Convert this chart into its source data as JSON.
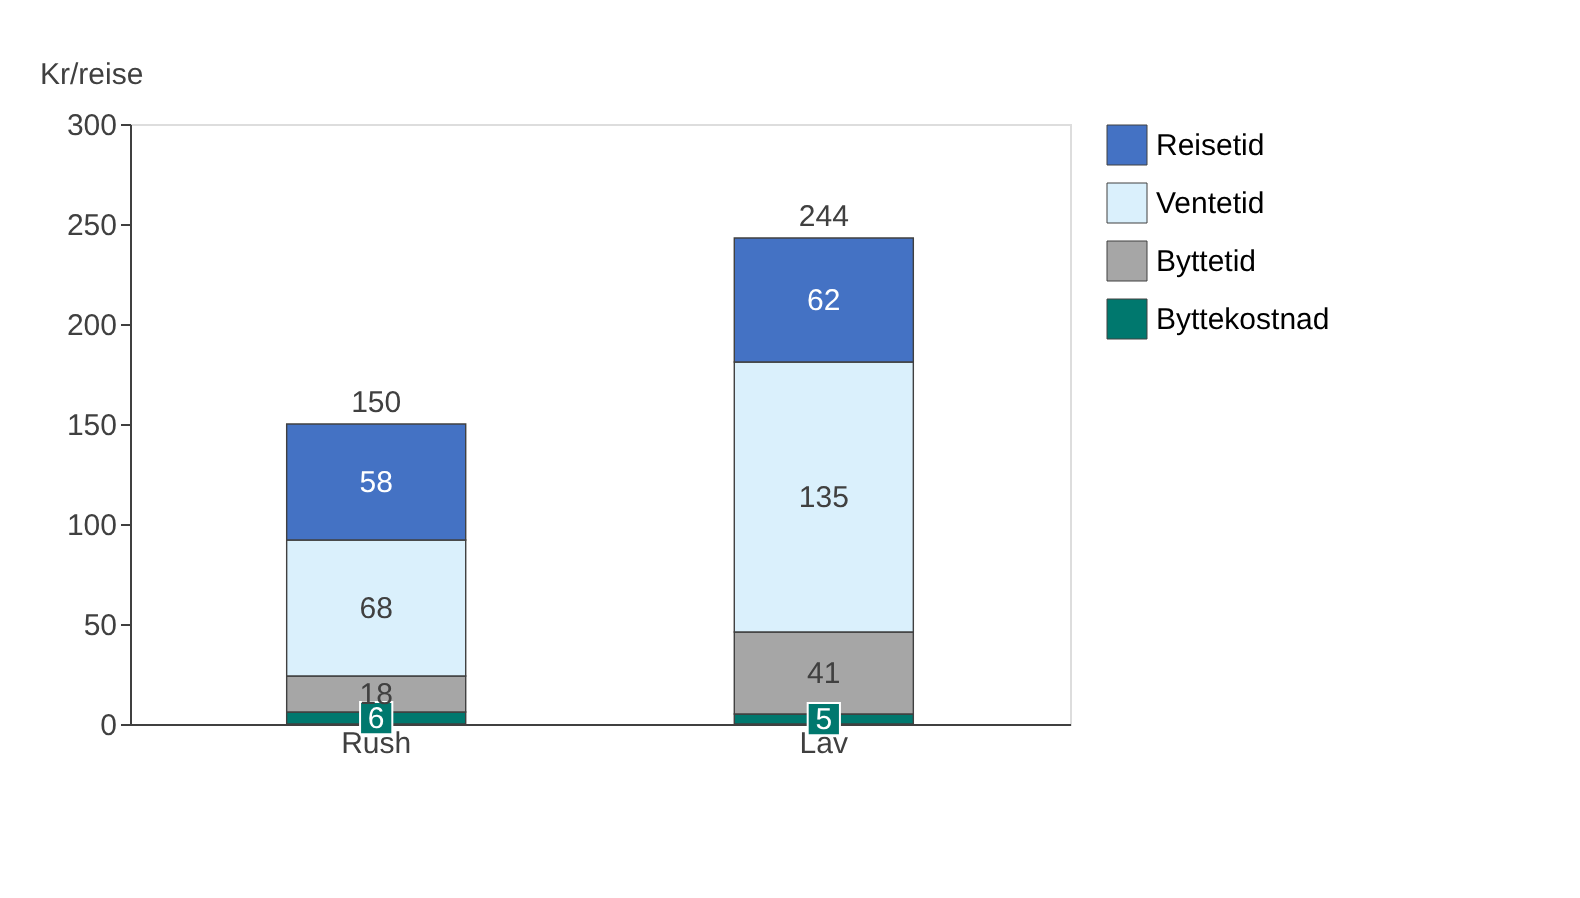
{
  "chart_data": {
    "type": "bar",
    "stacked": true,
    "ylabel": "Kr/reise",
    "categories": [
      "Rush",
      "Lav"
    ],
    "series": [
      {
        "name": "Byttekostnad",
        "color": "#00786e",
        "values": [
          6,
          5
        ]
      },
      {
        "name": "Byttetid",
        "color": "#a6a6a6",
        "values": [
          18,
          41
        ]
      },
      {
        "name": "Ventetid",
        "color": "#daf0fc",
        "values": [
          68,
          135
        ]
      },
      {
        "name": "Reisetid",
        "color": "#4472c4",
        "values": [
          58,
          62
        ]
      }
    ],
    "totals": [
      "150",
      "244"
    ],
    "data_labels": true,
    "ylim": [
      0,
      300
    ],
    "yticks": [
      0,
      50,
      100,
      150,
      200,
      250,
      300
    ],
    "grid": false,
    "legend": "right"
  }
}
